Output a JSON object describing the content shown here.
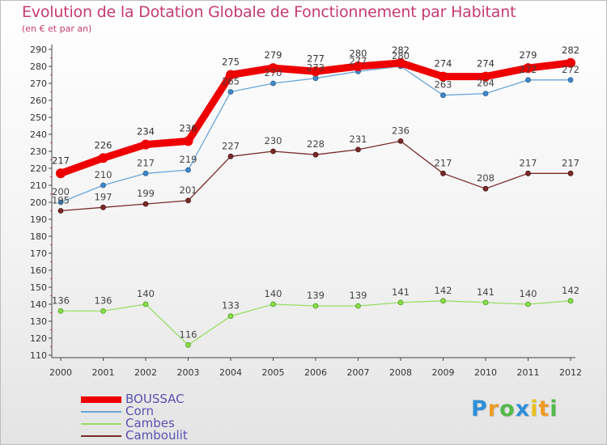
{
  "title": "Evolution de la Dotation Globale de Fonctionnement par Habitant",
  "subtitle": "(en € et par an)",
  "colors": {
    "title": "#c63a70",
    "axis": "#444444",
    "legend_text": "#5a50b0"
  },
  "logo": {
    "text": "Proxiti",
    "letters": [
      "P",
      "r",
      "o",
      "x",
      "i",
      "t",
      "i"
    ],
    "letter_colors": [
      "#2f8fd8",
      "#ef9c27",
      "#55b84a",
      "#2f8fd8",
      "#e6c21e",
      "#ef9c27",
      "#55b84a"
    ]
  },
  "chart_data": {
    "type": "line",
    "title": "Evolution de la Dotation Globale de Fonctionnement par Habitant",
    "subtitle": "(en € et par an)",
    "xlabel": "",
    "ylabel": "",
    "ylim": [
      110,
      290
    ],
    "yticks": [
      110,
      120,
      130,
      140,
      150,
      160,
      170,
      180,
      190,
      200,
      210,
      220,
      230,
      240,
      250,
      260,
      270,
      280,
      290
    ],
    "grid": false,
    "legend_position": "bottom-left",
    "x": [
      "2000",
      "2001",
      "2002",
      "2003",
      "2004",
      "2005",
      "2006",
      "2007",
      "2008",
      "2009",
      "2010",
      "2011",
      "2012"
    ],
    "series": [
      {
        "name": "BOUSSAC",
        "color": "#ee0000",
        "values": [
          217,
          226,
          234,
          236,
          275,
          279,
          277,
          280,
          282,
          274,
          274,
          279,
          282
        ],
        "labels": [
          "217",
          "226",
          "234",
          "236",
          "275",
          "279",
          "277",
          "280",
          "282",
          "274",
          "274",
          "279",
          "282"
        ]
      },
      {
        "name": "Corn",
        "color": "#6aa6d8",
        "values": [
          200,
          210,
          217,
          219,
          265,
          270,
          273,
          277,
          280,
          263,
          264,
          272,
          272
        ],
        "labels": [
          "200",
          "210",
          "217",
          "219",
          "265",
          "270",
          "273",
          "277",
          "280",
          "263",
          "264",
          "272",
          "272"
        ]
      },
      {
        "name": "Cambes",
        "color": "#99dd66",
        "values": [
          136,
          136,
          140,
          116,
          133,
          140,
          139,
          139,
          141,
          142,
          141,
          140,
          142
        ],
        "labels": [
          "136",
          "136",
          "140",
          "116",
          "133",
          "140",
          "139",
          "139",
          "141",
          "142",
          "141",
          "140",
          "142"
        ]
      },
      {
        "name": "Camboulit",
        "color": "#7a2a2a",
        "values": [
          195,
          197,
          199,
          201,
          227,
          230,
          228,
          231,
          236,
          217,
          208,
          217,
          217
        ],
        "labels": [
          "195",
          "197",
          "199",
          "201",
          "227",
          "230",
          "228",
          "231",
          "236",
          "217",
          "208",
          "217",
          "217"
        ]
      }
    ]
  }
}
